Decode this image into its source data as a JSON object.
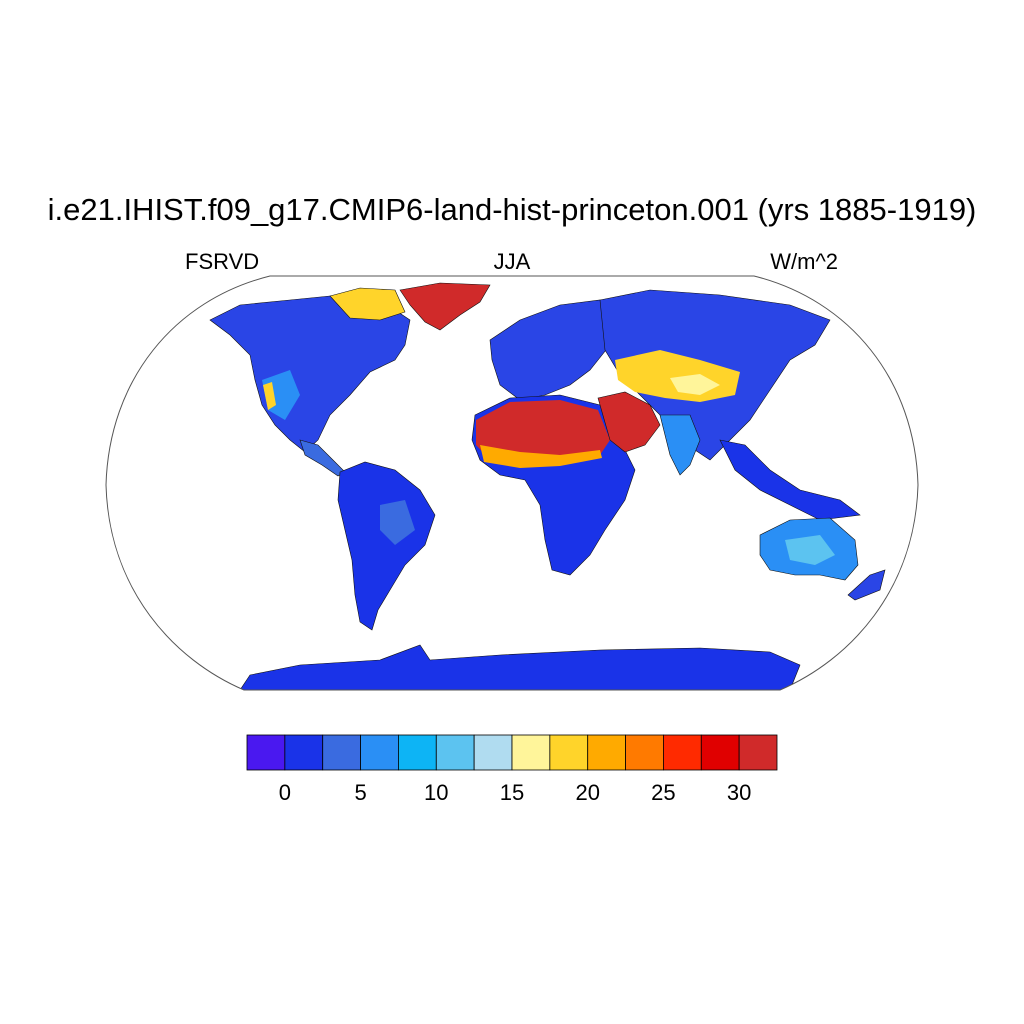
{
  "title": "i.e21.IHIST.f09_g17.CMIP6-land-hist-princeton.001 (yrs 1885-1919)",
  "left_label": "FSRVD",
  "center_label": "JJA",
  "right_label": "W/m^2",
  "map": {
    "projection": "Robinson",
    "ocean_color": "#ffffff",
    "coastline_color": "#000000",
    "regions": [
      {
        "name": "North America",
        "level": "2-10"
      },
      {
        "name": "South America",
        "level": "2-6"
      },
      {
        "name": "Sahara / Arabia",
        "level": "26-32"
      },
      {
        "name": "Central Asia",
        "level": "14-22"
      },
      {
        "name": "Greenland",
        "level": "32"
      },
      {
        "name": "Antarctica",
        "level": "2"
      },
      {
        "name": "Australia",
        "level": "6-12"
      }
    ]
  },
  "colorbar": {
    "colors": [
      "#4a18f0",
      "#1a33e8",
      "#3a6be0",
      "#2a8ff5",
      "#0db4f5",
      "#5cc3f0",
      "#b0dcf0",
      "#fff59a",
      "#ffd42a",
      "#ffaa00",
      "#ff7a00",
      "#ff2a00",
      "#e00000",
      "#d02a2a"
    ],
    "tick_labels": [
      "0",
      "5",
      "10",
      "15",
      "20",
      "25",
      "30"
    ]
  }
}
